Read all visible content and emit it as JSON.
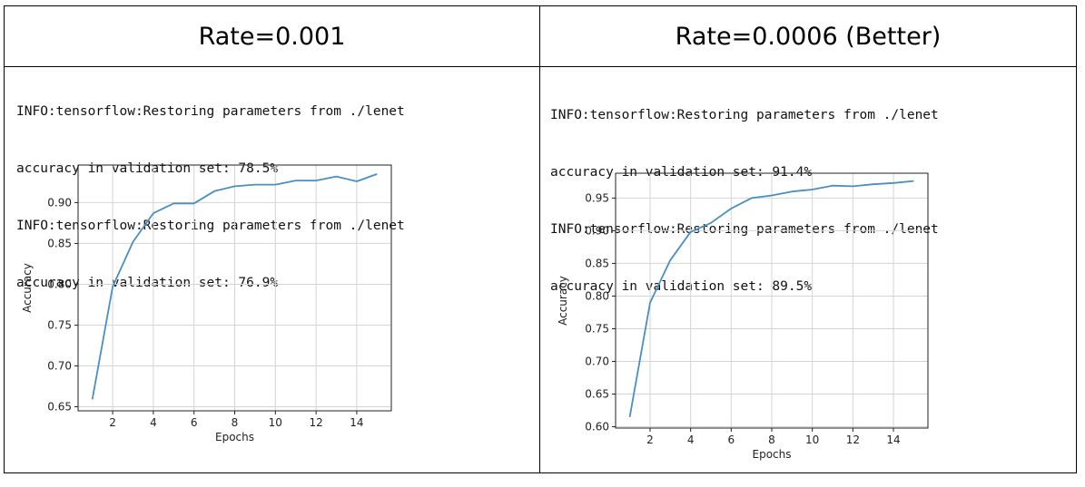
{
  "panels": [
    {
      "header": "Rate=0.001",
      "log_lines": [
        "INFO:tensorflow:Restoring parameters from ./lenet",
        "accuracy in validation set: 78.5%",
        "INFO:tensorflow:Restoring parameters from ./lenet",
        "accuracy in validation set: 76.9%"
      ]
    },
    {
      "header": "Rate=0.0006 (Better)",
      "log_lines": [
        "INFO:tensorflow:Restoring parameters from ./lenet",
        "accuracy in validation set: 91.4%",
        "INFO:tensorflow:Restoring parameters from ./lenet",
        "accuracy in validation set: 89.5%"
      ]
    }
  ],
  "chart_data": [
    {
      "type": "line",
      "xlabel": "Epochs",
      "ylabel": "Accuracy",
      "xlim": [
        0.3,
        15.7
      ],
      "ylim": [
        0.645,
        0.946
      ],
      "xticks": [
        2,
        4,
        6,
        8,
        10,
        12,
        14
      ],
      "yticks": [
        0.65,
        0.7,
        0.75,
        0.8,
        0.85,
        0.9
      ],
      "grid": true,
      "line_color": "#4a8fc1",
      "series": [
        {
          "x": [
            1,
            2,
            3,
            4,
            5,
            6,
            7,
            8,
            9,
            10,
            11,
            12,
            13,
            14,
            15
          ],
          "values": [
            0.659,
            0.797,
            0.852,
            0.887,
            0.899,
            0.899,
            0.914,
            0.92,
            0.922,
            0.922,
            0.927,
            0.927,
            0.932,
            0.926,
            0.935
          ]
        }
      ]
    },
    {
      "type": "line",
      "xlabel": "Epochs",
      "ylabel": "Accuracy",
      "xlim": [
        0.3,
        15.7
      ],
      "ylim": [
        0.598,
        0.988
      ],
      "xticks": [
        2,
        4,
        6,
        8,
        10,
        12,
        14
      ],
      "yticks": [
        0.6,
        0.65,
        0.7,
        0.75,
        0.8,
        0.85,
        0.9,
        0.95
      ],
      "grid": true,
      "line_color": "#4a8fc1",
      "series": [
        {
          "x": [
            1,
            2,
            3,
            4,
            5,
            6,
            7,
            8,
            9,
            10,
            11,
            12,
            13,
            14,
            15
          ],
          "values": [
            0.615,
            0.79,
            0.855,
            0.898,
            0.912,
            0.934,
            0.95,
            0.954,
            0.96,
            0.963,
            0.969,
            0.968,
            0.971,
            0.973,
            0.976
          ]
        }
      ]
    }
  ]
}
